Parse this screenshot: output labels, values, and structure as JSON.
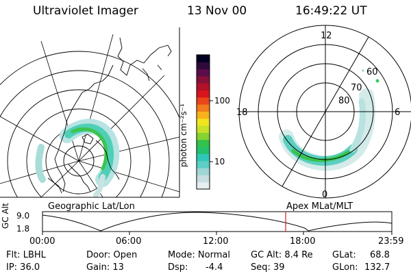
{
  "header": {
    "instrument": "Ultraviolet Imager",
    "date": "13 Nov 00",
    "time": "16:49:22 UT"
  },
  "colorbar": {
    "unit_label": "photon cm⁻²s⁻¹",
    "ticks": [
      "100",
      "10"
    ],
    "colors": [
      "#e6eef0",
      "#c8dde0",
      "#9fd5d5",
      "#5ccfc6",
      "#2fc8b8",
      "#24c06c",
      "#33c24a",
      "#86d233",
      "#c8e028",
      "#f1e51f",
      "#f7b21c",
      "#f07c1c",
      "#e8461b",
      "#d8141e",
      "#b3102a",
      "#85103a",
      "#5a0d4a",
      "#2e0a3c",
      "#000020"
    ]
  },
  "left_panel": {
    "caption": "Geographic Lat/Lon"
  },
  "right_panel": {
    "caption": "Apex MLat/MLT",
    "mlt_labels": {
      "top": "12",
      "left": "18",
      "right": "6",
      "bottom": "0"
    },
    "lat_labels": [
      "60",
      "70",
      "80"
    ]
  },
  "timeline": {
    "axis_label": "GC Alt",
    "y_ticks": [
      "9.0",
      "1.8"
    ],
    "x_ticks": [
      "00:00",
      "06:00",
      "12:00",
      "18:00",
      "23:59"
    ],
    "marker_color": "#d02020"
  },
  "status": {
    "row1": {
      "filter": "Flt: LBHL",
      "door": "Door: Open",
      "mode": "Mode: Normal",
      "gc_alt": "GC Alt: 8.4 Re",
      "glat": "GLat:",
      "glat_val": "68.8"
    },
    "row2": {
      "ip": "IP: 36.0",
      "gain": "Gain: 13",
      "dsp_label": "Dsp:",
      "dsp_val": "-4.4",
      "seq": "Seq: 39",
      "glon": "GLon:",
      "glon_val": "132.7"
    }
  }
}
